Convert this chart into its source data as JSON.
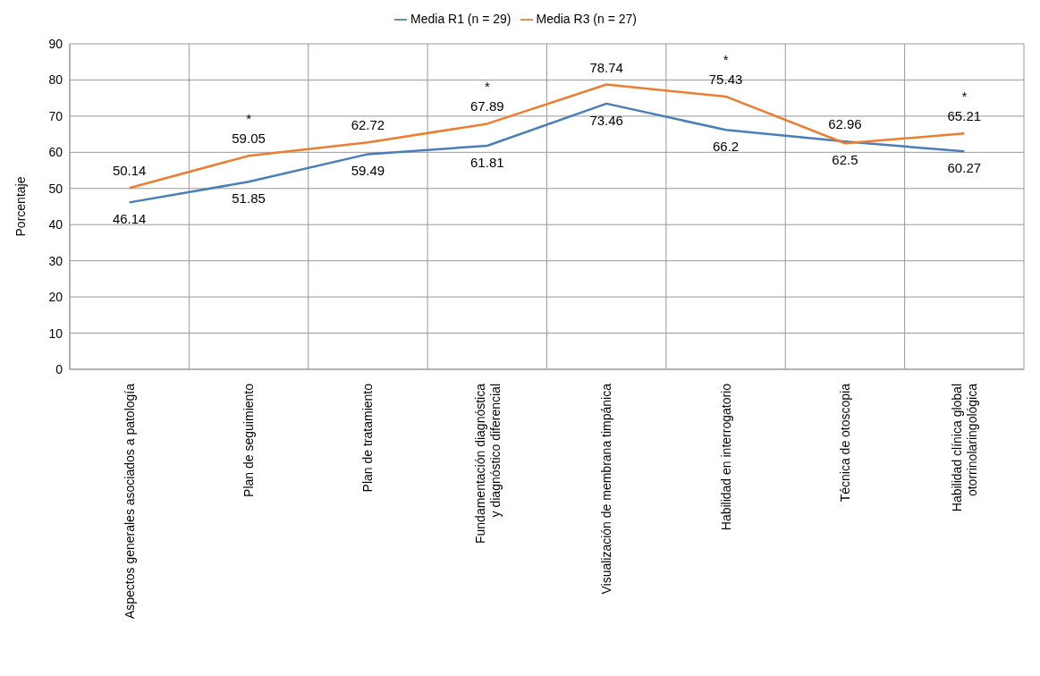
{
  "chart_data": {
    "type": "line",
    "ylabel": "Porcentaje",
    "categories": [
      "Aspectos generales asociados a patología",
      "Plan de seguimiento",
      "Plan de tratamiento",
      "Fundamentación diagnóstica y diagnóstico diferencial",
      "Visualización de membrana timpánica",
      "Habilidad en interrogatorio",
      "Técnica de otoscopia",
      "Habilidad clínica global otorrinolaringológica"
    ],
    "series": [
      {
        "name": "Media R1 (n = 29)",
        "color": "#4a7ebb",
        "values": [
          46.14,
          51.85,
          59.49,
          61.81,
          73.46,
          66.2,
          62.96,
          60.27
        ]
      },
      {
        "name": "Media R3 (n = 27)",
        "color": "#ed7d31",
        "values": [
          50.14,
          59.05,
          62.72,
          67.89,
          78.74,
          75.43,
          62.5,
          65.21
        ]
      }
    ],
    "ylim": [
      0,
      90
    ],
    "yticks": [
      0,
      10,
      20,
      30,
      40,
      50,
      60,
      70,
      80,
      90
    ],
    "grid": true,
    "legend": "top",
    "data_labels": true,
    "marker": "none",
    "line_style": "solid",
    "annotations": [
      {
        "text": "*",
        "x": "Plan de seguimiento",
        "y": 59.05
      },
      {
        "text": "*",
        "x": "Fundamentación diagnóstica y diagnóstico diferencial",
        "y": 67.89
      },
      {
        "text": "*",
        "x": "Habilidad en interrogatorio",
        "y": 75.43
      },
      {
        "text": "*",
        "x": "Habilidad clínica global otorrinolaringológica",
        "y": 65.21
      }
    ]
  }
}
